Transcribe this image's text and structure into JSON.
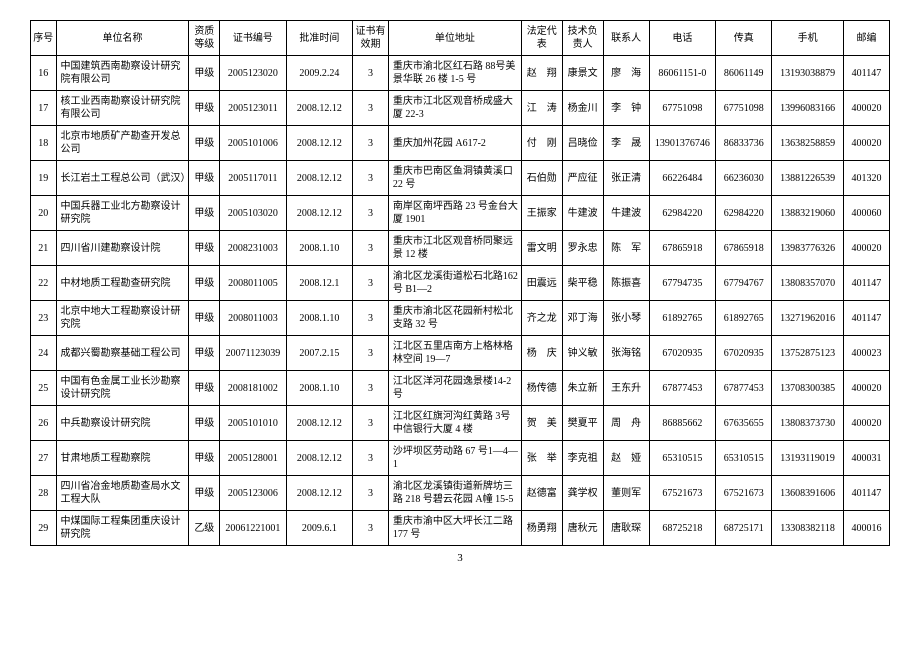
{
  "columns": [
    "序号",
    "单位名称",
    "资质等级",
    "证书编号",
    "批准时间",
    "证书有效期",
    "单位地址",
    "法定代表",
    "技术负责人",
    "联系人",
    "电话",
    "传真",
    "手机",
    "邮编"
  ],
  "rows": [
    {
      "seq": "16",
      "name": "中国建筑西南勘察设计研究院有限公司",
      "grade": "甲级",
      "cert": "2005123020",
      "date": "2009.2.24",
      "valid": "3",
      "addr": "重庆市渝北区红石路 88号美景华联 26 楼 1-5 号",
      "rep": "赵　翔",
      "tech": "康景文",
      "contact": "廖　海",
      "tel": "86061151-0",
      "fax": "86061149",
      "mobile": "13193038879",
      "zip": "401147"
    },
    {
      "seq": "17",
      "name": "核工业西南勘察设计研究院有限公司",
      "grade": "甲级",
      "cert": "2005123011",
      "date": "2008.12.12",
      "valid": "3",
      "addr": "重庆市江北区观音桥成盛大厦 22-3",
      "rep": "江　涛",
      "tech": "杨金川",
      "contact": "李　钟",
      "tel": "67751098",
      "fax": "67751098",
      "mobile": "13996083166",
      "zip": "400020"
    },
    {
      "seq": "18",
      "name": "北京市地质矿产勘查开发总公司",
      "grade": "甲级",
      "cert": "2005101006",
      "date": "2008.12.12",
      "valid": "3",
      "addr": "重庆加州花园 A617-2",
      "rep": "付　刚",
      "tech": "吕晓俭",
      "contact": "李　晟",
      "tel": "13901376746",
      "fax": "86833736",
      "mobile": "13638258859",
      "zip": "400020"
    },
    {
      "seq": "19",
      "name": "长江岩土工程总公司（武汉）",
      "grade": "甲级",
      "cert": "2005117011",
      "date": "2008.12.12",
      "valid": "3",
      "addr": "重庆市巴南区鱼洞镇黄溪口 22 号",
      "rep": "石伯勋",
      "tech": "严应征",
      "contact": "张正清",
      "tel": "66226484",
      "fax": "66236030",
      "mobile": "13881226539",
      "zip": "401320"
    },
    {
      "seq": "20",
      "name": "中国兵器工业北方勘察设计研究院",
      "grade": "甲级",
      "cert": "2005103020",
      "date": "2008.12.12",
      "valid": "3",
      "addr": "南岸区南坪西路 23 号金台大厦 1901",
      "rep": "王振家",
      "tech": "牛建波",
      "contact": "牛建波",
      "tel": "62984220",
      "fax": "62984220",
      "mobile": "13883219060",
      "zip": "400060"
    },
    {
      "seq": "21",
      "name": "四川省川建勘察设计院",
      "grade": "甲级",
      "cert": "2008231003",
      "date": "2008.1.10",
      "valid": "3",
      "addr": "重庆市江北区观音桥同聚远景 12 楼",
      "rep": "雷文明",
      "tech": "罗永忠",
      "contact": "陈　军",
      "tel": "67865918",
      "fax": "67865918",
      "mobile": "13983776326",
      "zip": "400020"
    },
    {
      "seq": "22",
      "name": "中材地质工程勘查研究院",
      "grade": "甲级",
      "cert": "2008011005",
      "date": "2008.12.1",
      "valid": "3",
      "addr": "渝北区龙溪街道松石北路162 号 B1—2",
      "rep": "田震远",
      "tech": "柴平稳",
      "contact": "陈振喜",
      "tel": "67794735",
      "fax": "67794767",
      "mobile": "13808357070",
      "zip": "401147"
    },
    {
      "seq": "23",
      "name": "北京中地大工程勘察设计研究院",
      "grade": "甲级",
      "cert": "2008011003",
      "date": "2008.1.10",
      "valid": "3",
      "addr": "重庆市渝北区花园新村松北支路 32 号",
      "rep": "齐之龙",
      "tech": "邓丁海",
      "contact": "张小琴",
      "tel": "61892765",
      "fax": "61892765",
      "mobile": "13271962016",
      "zip": "401147"
    },
    {
      "seq": "24",
      "name": "成都兴蜀勘察基础工程公司",
      "grade": "甲级",
      "cert": "20071123039",
      "date": "2007.2.15",
      "valid": "3",
      "addr": "江北区五里店南方上格林格林空间 19—7",
      "rep": "杨　庆",
      "tech": "钟义敏",
      "contact": "张海铭",
      "tel": "67020935",
      "fax": "67020935",
      "mobile": "13752875123",
      "zip": "400023"
    },
    {
      "seq": "25",
      "name": "中国有色金属工业长沙勘察设计研究院",
      "grade": "甲级",
      "cert": "2008181002",
      "date": "2008.1.10",
      "valid": "3",
      "addr": "江北区洋河花园逸景楼14-2 号",
      "rep": "杨传德",
      "tech": "朱立新",
      "contact": "王东升",
      "tel": "67877453",
      "fax": "67877453",
      "mobile": "13708300385",
      "zip": "400020"
    },
    {
      "seq": "26",
      "name": "中兵勘察设计研究院",
      "grade": "甲级",
      "cert": "2005101010",
      "date": "2008.12.12",
      "valid": "3",
      "addr": "江北区红旗河沟红黄路 3号中信银行大厦 4 楼",
      "rep": "贺　美",
      "tech": "樊夏平",
      "contact": "周　舟",
      "tel": "86885662",
      "fax": "67635655",
      "mobile": "13808373730",
      "zip": "400020"
    },
    {
      "seq": "27",
      "name": "甘肃地质工程勘察院",
      "grade": "甲级",
      "cert": "2005128001",
      "date": "2008.12.12",
      "valid": "3",
      "addr": "沙坪坝区劳动路 67 号1—4—1",
      "rep": "张　举",
      "tech": "李克祖",
      "contact": "赵　娅",
      "tel": "65310515",
      "fax": "65310515",
      "mobile": "13193119019",
      "zip": "400031"
    },
    {
      "seq": "28",
      "name": "四川省冶金地质勘查局水文工程大队",
      "grade": "甲级",
      "cert": "2005123006",
      "date": "2008.12.12",
      "valid": "3",
      "addr": "渝北区龙溪镇街道新牌坊三路 218 号碧云花园 A幢 15-5",
      "rep": "赵德富",
      "tech": "龚学权",
      "contact": "董则军",
      "tel": "67521673",
      "fax": "67521673",
      "mobile": "13608391606",
      "zip": "401147"
    },
    {
      "seq": "29",
      "name": "中煤国际工程集团重庆设计研究院",
      "grade": "乙级",
      "cert": "20061221001",
      "date": "2009.6.1",
      "valid": "3",
      "addr": "重庆市渝中区大坪长江二路 177 号",
      "rep": "杨勇翔",
      "tech": "唐秋元",
      "contact": "唐耿琛",
      "tel": "68725218",
      "fax": "68725171",
      "mobile": "13308382118",
      "zip": "400016"
    }
  ],
  "page": "3",
  "style": {
    "bg": "#ffffff",
    "border": "#000000",
    "fontsize_cell": 10,
    "fontsize_page": 11
  }
}
